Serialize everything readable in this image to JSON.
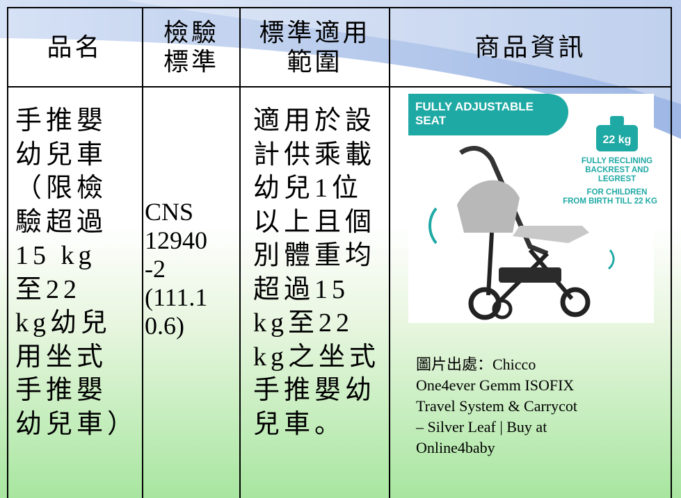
{
  "table": {
    "header": [
      "品名",
      [
        "檢驗",
        "標準"
      ],
      [
        "標準適用",
        "範圍"
      ],
      "商品資訊"
    ],
    "row": {
      "name": [
        "手推嬰",
        "幼兒車",
        "（限檢",
        "驗超過",
        "15 kg",
        "至22",
        "kg幼兒",
        "用坐式",
        "手推嬰",
        "幼兒車）"
      ],
      "standard": [
        "CNS",
        "12940",
        "-2",
        "(111.1",
        "0.6)"
      ],
      "scope": [
        "適用於設",
        "計供乘載",
        "幼兒1位",
        "以上且個",
        "別體重均",
        "超過15",
        "kg至22",
        "kg之坐式",
        "手推嬰幼",
        "兒車。"
      ],
      "image": {
        "headline": [
          "FULLY ADJUSTABLE",
          "SEAT"
        ],
        "weight": "22 kg",
        "feature": [
          "FULLY RECLINING",
          "BACKREST AND",
          "LEGREST",
          "FOR CHILDREN",
          "FROM BIRTH TILL 22 KG"
        ]
      },
      "caption": [
        "圖片出處：Chicco",
        "One4ever Gemm ISOFIX",
        "Travel System & Carrycot",
        "– Silver Leaf | Buy at",
        "Online4baby"
      ]
    }
  }
}
